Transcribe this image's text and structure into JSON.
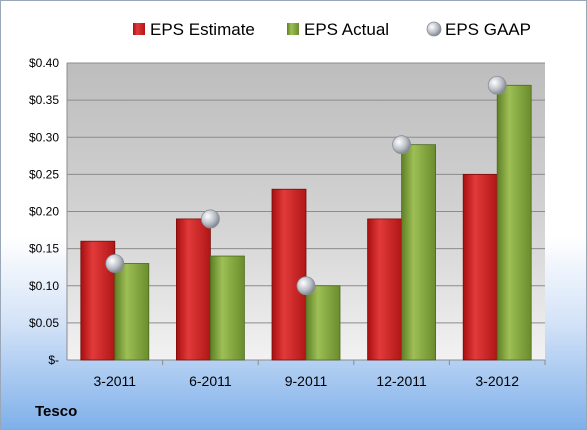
{
  "company": "Tesco",
  "chart_data": {
    "type": "bar",
    "categories": [
      "3-2011",
      "6-2011",
      "9-2011",
      "12-2011",
      "3-2012"
    ],
    "series": [
      {
        "name": "EPS Estimate",
        "values": [
          0.16,
          0.19,
          0.23,
          0.19,
          0.25
        ],
        "color": "#cc1f1f"
      },
      {
        "name": "EPS Actual",
        "values": [
          0.13,
          0.14,
          0.1,
          0.29,
          0.37
        ],
        "color": "#7fa13a"
      },
      {
        "name": "EPS GAAP",
        "values": [
          0.13,
          0.19,
          0.1,
          0.29,
          0.37
        ],
        "color": "#b9bec6",
        "style": "marker"
      }
    ],
    "yticks": [
      "$-",
      "$0.05",
      "$0.10",
      "$0.15",
      "$0.20",
      "$0.25",
      "$0.30",
      "$0.35",
      "$0.40"
    ],
    "ylim": [
      0,
      0.4
    ],
    "grid": true,
    "legend": "top"
  }
}
